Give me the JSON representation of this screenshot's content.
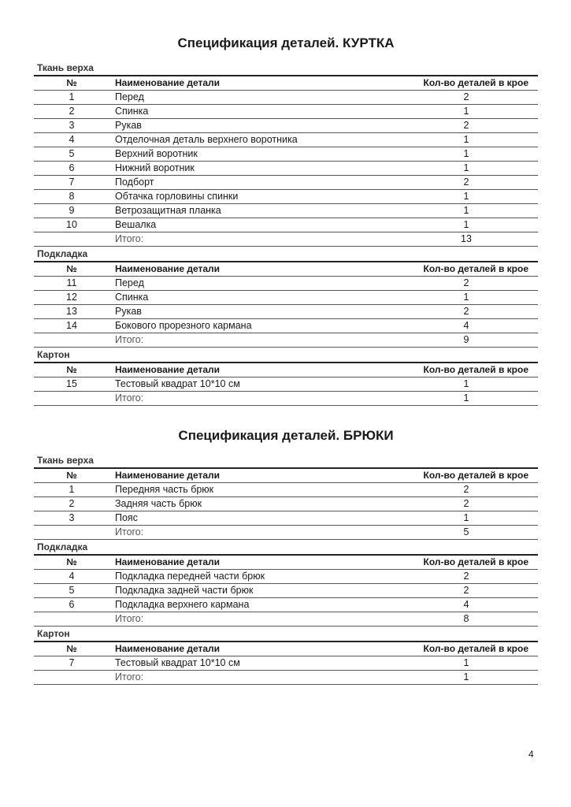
{
  "specs": [
    {
      "title": "Спецификация деталей. КУРТКА",
      "sections": [
        {
          "label": "Ткань верха",
          "headers": [
            "№",
            "Наименование детали",
            "Кол-во деталей в крое"
          ],
          "rows": [
            [
              "1",
              "Перед",
              "2"
            ],
            [
              "2",
              "Спинка",
              "1"
            ],
            [
              "3",
              "Рукав",
              "2"
            ],
            [
              "4",
              "Отделочная деталь верхнего воротника",
              "1"
            ],
            [
              "5",
              "Верхний воротник",
              "1"
            ],
            [
              "6",
              "Нижний воротник",
              "1"
            ],
            [
              "7",
              "Подборт",
              "2"
            ],
            [
              "8",
              "Обтачка горловины спинки",
              "1"
            ],
            [
              "9",
              "Ветрозащитная планка",
              "1"
            ],
            [
              "10",
              "Вешалка",
              "1"
            ]
          ],
          "total_label": "Итого:",
          "total": "13"
        },
        {
          "label": "Подкладка",
          "headers": [
            "№",
            "Наименование детали",
            "Кол-во деталей в крое"
          ],
          "rows": [
            [
              "11",
              "Перед",
              "2"
            ],
            [
              "12",
              "Спинка",
              "1"
            ],
            [
              "13",
              "Рукав",
              "2"
            ],
            [
              "14",
              "Бокового прорезного кармана",
              "4"
            ]
          ],
          "total_label": "Итого:",
          "total": "9"
        },
        {
          "label": "Картон",
          "headers": [
            "№",
            "Наименование детали",
            "Кол-во деталей в крое"
          ],
          "rows": [
            [
              "15",
              "Тестовый квадрат 10*10 см",
              "1"
            ]
          ],
          "total_label": "Итого:",
          "total": "1"
        }
      ]
    },
    {
      "title": "Спецификация деталей. БРЮКИ",
      "sections": [
        {
          "label": "Ткань верха",
          "headers": [
            "№",
            "Наименование детали",
            "Кол-во деталей в крое"
          ],
          "rows": [
            [
              "1",
              "Передняя часть брюк",
              "2"
            ],
            [
              "2",
              "Задняя часть брюк",
              "2"
            ],
            [
              "3",
              "Пояс",
              "1"
            ]
          ],
          "total_label": "Итого:",
          "total": "5"
        },
        {
          "label": "Подкладка",
          "headers": [
            "№",
            "Наименование детали",
            "Кол-во деталей в крое"
          ],
          "rows": [
            [
              "4",
              "Подкладка передней части брюк",
              "2"
            ],
            [
              "5",
              "Подкладка задней части брюк",
              "2"
            ],
            [
              "6",
              "Подкладка верхнего кармана",
              "4"
            ]
          ],
          "total_label": "Итого:",
          "total": "8"
        },
        {
          "label": "Картон",
          "headers": [
            "№",
            "Наименование детали",
            "Кол-во деталей в крое"
          ],
          "rows": [
            [
              "7",
              "Тестовый квадрат 10*10 см",
              "1"
            ]
          ],
          "total_label": "Итого:",
          "total": "1"
        }
      ]
    }
  ],
  "page_number": "4"
}
